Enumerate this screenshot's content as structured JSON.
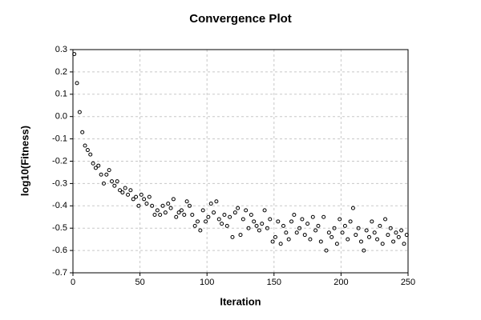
{
  "chart_data": {
    "type": "scatter",
    "title": "Convergence Plot",
    "x_label": "Iteration",
    "y_label": "log10(Fitness)",
    "x": [
      1,
      3,
      5,
      7,
      9,
      11,
      13,
      15,
      17,
      19,
      21,
      23,
      25,
      27,
      29,
      31,
      33,
      35,
      37,
      39,
      41,
      43,
      45,
      47,
      49,
      51,
      53,
      55,
      57,
      59,
      61,
      63,
      65,
      67,
      69,
      71,
      73,
      75,
      77,
      79,
      81,
      83,
      85,
      87,
      89,
      91,
      93,
      95,
      97,
      99,
      101,
      103,
      105,
      107,
      109,
      111,
      113,
      115,
      117,
      119,
      121,
      123,
      125,
      127,
      129,
      131,
      133,
      135,
      137,
      139,
      141,
      143,
      145,
      147,
      149,
      151,
      153,
      155,
      157,
      159,
      161,
      163,
      165,
      167,
      169,
      171,
      173,
      175,
      177,
      179,
      181,
      183,
      185,
      187,
      189,
      191,
      193,
      195,
      197,
      199,
      201,
      203,
      205,
      207,
      209,
      211,
      213,
      215,
      217,
      219,
      221,
      223,
      225,
      227,
      229,
      231,
      233,
      235,
      237,
      239,
      241,
      243,
      245,
      247,
      249
    ],
    "values": [
      0.28,
      0.15,
      0.02,
      -0.07,
      -0.13,
      -0.15,
      -0.17,
      -0.21,
      -0.23,
      -0.22,
      -0.26,
      -0.3,
      -0.26,
      -0.24,
      -0.29,
      -0.31,
      -0.29,
      -0.33,
      -0.34,
      -0.32,
      -0.35,
      -0.33,
      -0.37,
      -0.36,
      -0.4,
      -0.35,
      -0.37,
      -0.39,
      -0.36,
      -0.4,
      -0.44,
      -0.42,
      -0.44,
      -0.4,
      -0.43,
      -0.39,
      -0.41,
      -0.37,
      -0.45,
      -0.43,
      -0.42,
      -0.44,
      -0.38,
      -0.4,
      -0.44,
      -0.49,
      -0.47,
      -0.51,
      -0.42,
      -0.47,
      -0.45,
      -0.39,
      -0.43,
      -0.38,
      -0.46,
      -0.48,
      -0.44,
      -0.49,
      -0.45,
      -0.54,
      -0.43,
      -0.41,
      -0.53,
      -0.46,
      -0.42,
      -0.5,
      -0.44,
      -0.47,
      -0.49,
      -0.51,
      -0.48,
      -0.42,
      -0.5,
      -0.46,
      -0.56,
      -0.54,
      -0.47,
      -0.57,
      -0.49,
      -0.52,
      -0.55,
      -0.47,
      -0.44,
      -0.52,
      -0.5,
      -0.46,
      -0.53,
      -0.48,
      -0.55,
      -0.45,
      -0.51,
      -0.49,
      -0.56,
      -0.45,
      -0.6,
      -0.52,
      -0.54,
      -0.5,
      -0.57,
      -0.46,
      -0.52,
      -0.49,
      -0.55,
      -0.47,
      -0.41,
      -0.53,
      -0.5,
      -0.56,
      -0.6,
      -0.51,
      -0.54,
      -0.47,
      -0.52,
      -0.55,
      -0.49,
      -0.57,
      -0.46,
      -0.53,
      -0.5,
      -0.56,
      -0.52,
      -0.54,
      -0.51,
      -0.57,
      -0.53
    ],
    "color": "#000000",
    "xlim": [
      0,
      250
    ],
    "xticks": [
      0,
      50,
      100,
      150,
      200,
      250
    ],
    "ylim": [
      -0.7,
      0.3
    ],
    "yticks": [
      0.3,
      0.2,
      0.1,
      {
        "value": 0,
        "label": "0.0"
      },
      -0.1,
      -0.2,
      -0.3,
      -0.4,
      -0.5,
      -0.6,
      -0.7
    ],
    "grid": true
  }
}
